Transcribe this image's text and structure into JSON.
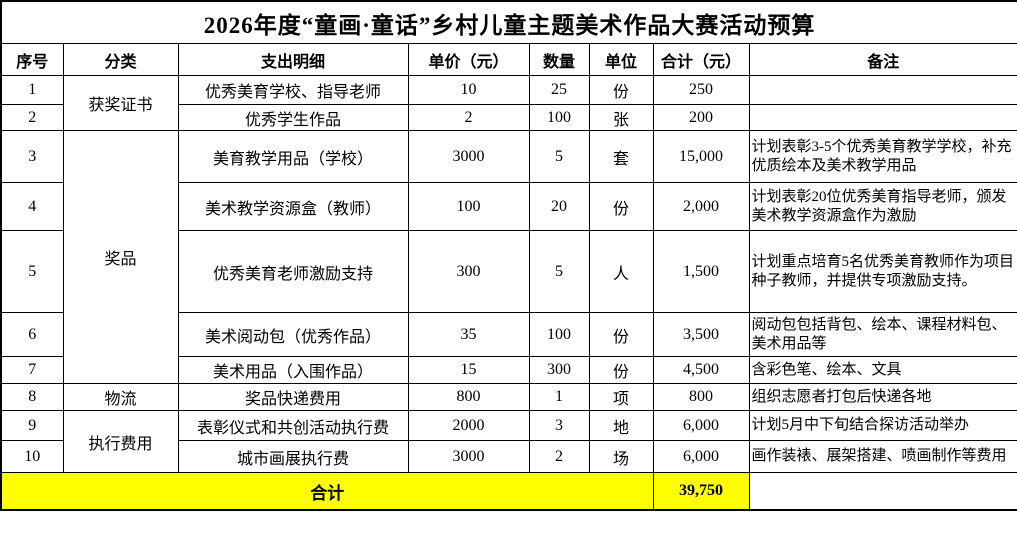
{
  "title": "2026年度“童画·童话”乡村儿童主题美术作品大赛活动预算",
  "colors": {
    "highlight_yellow": "#ffff00",
    "border": "#000000",
    "background": "#ffffff",
    "text": "#000000"
  },
  "table": {
    "columns": [
      "序号",
      "分类",
      "支出明细",
      "单价（元）",
      "数量",
      "单位",
      "合计（元）",
      "备注"
    ],
    "rows": [
      {
        "no": "1",
        "category": "获奖证书",
        "category_rowspan": 2,
        "detail": "优秀美育学校、指导老师",
        "unit_price": "10",
        "qty": "25",
        "unit": "份",
        "total": "250",
        "remark": ""
      },
      {
        "no": "2",
        "detail": "优秀学生作品",
        "unit_price": "2",
        "qty": "100",
        "unit": "张",
        "total": "200",
        "remark": ""
      },
      {
        "no": "3",
        "category": "奖品",
        "category_rowspan": 5,
        "detail": "美育教学用品（学校）",
        "unit_price": "3000",
        "qty": "5",
        "unit": "套",
        "total": "15,000",
        "remark": "计划表彰3-5个优秀美育教学学校，补充优质绘本及美术教学用品"
      },
      {
        "no": "4",
        "detail": "美术教学资源盒（教师）",
        "unit_price": "100",
        "qty": "20",
        "unit": "份",
        "total": "2,000",
        "remark": "计划表彰20位优秀美育指导老师，颁发美术教学资源盒作为激励"
      },
      {
        "no": "5",
        "detail": "优秀美育老师激励支持",
        "unit_price": "300",
        "qty": "5",
        "unit": "人",
        "total": "1,500",
        "remark": "计划重点培育5名优秀美育教师作为项目种子教师，并提供专项激励支持。"
      },
      {
        "no": "6",
        "detail": "美术阅动包（优秀作品）",
        "unit_price": "35",
        "qty": "100",
        "unit": "份",
        "total": "3,500",
        "remark": "阅动包包括背包、绘本、课程材料包、美术用品等"
      },
      {
        "no": "7",
        "detail": "美术用品（入围作品）",
        "unit_price": "15",
        "qty": "300",
        "unit": "份",
        "total": "4,500",
        "remark": "含彩色笔、绘本、文具"
      },
      {
        "no": "8",
        "category": "物流",
        "category_rowspan": 1,
        "detail": "奖品快递费用",
        "unit_price": "800",
        "qty": "1",
        "unit": "项",
        "total": "800",
        "remark": "组织志愿者打包后快递各地"
      },
      {
        "no": "9",
        "category": "执行费用",
        "category_rowspan": 2,
        "detail": "表彰仪式和共创活动执行费",
        "unit_price": "2000",
        "qty": "3",
        "unit": "地",
        "total": "6,000",
        "remark": "计划5月中下旬结合探访活动举办"
      },
      {
        "no": "10",
        "detail": "城市画展执行费",
        "unit_price": "3000",
        "qty": "2",
        "unit": "场",
        "total": "6,000",
        "remark": "画作装裱、展架搭建、喷画制作等费用"
      }
    ],
    "footer": {
      "label": "合计",
      "total": "39,750",
      "remark": ""
    }
  }
}
